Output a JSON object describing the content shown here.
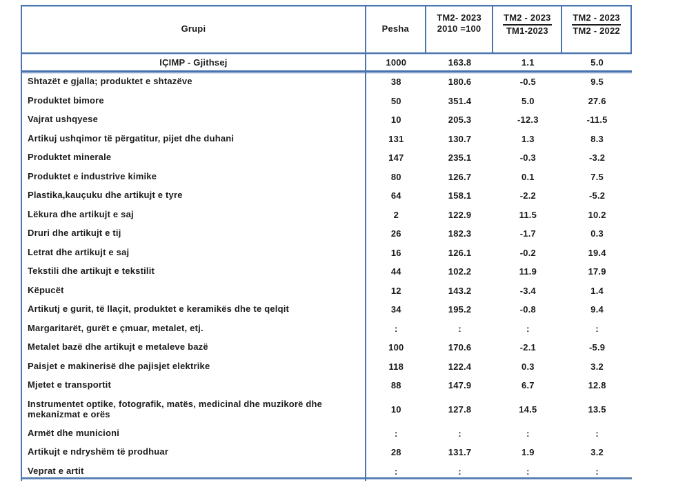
{
  "colors": {
    "border_blue": "#4a74ad",
    "border_light": "#b4c7e2",
    "text": "#1b1b1b",
    "background": "#ffffff"
  },
  "table": {
    "header": {
      "grupi": "Grupi",
      "pesha": "Pesha",
      "index_line1": "TM2- 2023",
      "index_line2": "2010 =100",
      "chg_q_line1": "TM2 - 2023",
      "chg_q_line2": "TM1-2023",
      "chg_y_line1": "TM2 - 2023",
      "chg_y_line2": "TM2 - 2022"
    },
    "total_row": {
      "label": "IÇIMP - Gjithsej",
      "pesha": "1000",
      "index": "163.8",
      "chg_q": "1.1",
      "chg_y": "5.0"
    },
    "rows": [
      {
        "label": "Shtazët e gjalla; produktet e shtazëve",
        "pesha": "38",
        "index": "180.6",
        "chg_q": "-0.5",
        "chg_y": "9.5",
        "tall": false
      },
      {
        "label": "Produktet bimore",
        "pesha": "50",
        "index": "351.4",
        "chg_q": "5.0",
        "chg_y": "27.6",
        "tall": false
      },
      {
        "label": "Vajrat ushqyese",
        "pesha": "10",
        "index": "205.3",
        "chg_q": "-12.3",
        "chg_y": "-11.5",
        "tall": false
      },
      {
        "label": "Artikuj ushqimor të përgatitur, pijet dhe duhani",
        "pesha": "131",
        "index": "130.7",
        "chg_q": "1.3",
        "chg_y": "8.3",
        "tall": false
      },
      {
        "label": "Produktet minerale",
        "pesha": "147",
        "index": "235.1",
        "chg_q": "-0.3",
        "chg_y": "-3.2",
        "tall": false
      },
      {
        "label": "Produktet e industrive kimike",
        "pesha": "80",
        "index": "126.7",
        "chg_q": "0.1",
        "chg_y": "7.5",
        "tall": false
      },
      {
        "label": "Plastika,kauçuku dhe artikujt e tyre",
        "pesha": "64",
        "index": "158.1",
        "chg_q": "-2.2",
        "chg_y": "-5.2",
        "tall": false
      },
      {
        "label": "Lëkura dhe artikujt e saj",
        "pesha": "2",
        "index": "122.9",
        "chg_q": "11.5",
        "chg_y": "10.2",
        "tall": false
      },
      {
        "label": "Druri dhe artikujt e tij",
        "pesha": "26",
        "index": "182.3",
        "chg_q": "-1.7",
        "chg_y": "0.3",
        "tall": false
      },
      {
        "label": "Letrat dhe artikujt e saj",
        "pesha": "16",
        "index": "126.1",
        "chg_q": "-0.2",
        "chg_y": "19.4",
        "tall": false
      },
      {
        "label": "Tekstili dhe artikujt e tekstilit",
        "pesha": "44",
        "index": "102.2",
        "chg_q": "11.9",
        "chg_y": "17.9",
        "tall": false
      },
      {
        "label": "Këpucët",
        "pesha": "12",
        "index": "143.2",
        "chg_q": "-3.4",
        "chg_y": "1.4",
        "tall": false
      },
      {
        "label": "Artikutj e gurit, të llaçit, produktet e keramikës dhe te qelqit",
        "pesha": "34",
        "index": "195.2",
        "chg_q": "-0.8",
        "chg_y": "9.4",
        "tall": false
      },
      {
        "label": "Margaritarët, gurët e çmuar, metalet, etj.",
        "pesha": ":",
        "index": ":",
        "chg_q": ":",
        "chg_y": ":",
        "tall": false
      },
      {
        "label": "Metalet bazë dhe artikujt e metaleve bazë",
        "pesha": "100",
        "index": "170.6",
        "chg_q": "-2.1",
        "chg_y": "-5.9",
        "tall": false
      },
      {
        "label": "Paisjet e makinerisë dhe pajisjet elektrike",
        "pesha": "118",
        "index": "122.4",
        "chg_q": "0.3",
        "chg_y": "3.2",
        "tall": false
      },
      {
        "label": "Mjetet e transportit",
        "pesha": "88",
        "index": "147.9",
        "chg_q": "6.7",
        "chg_y": "12.8",
        "tall": false
      },
      {
        "label": "Instrumentet optike, fotografik, matës, medicinal dhe muzikorë dhe mekanizmat e orës",
        "pesha": "10",
        "index": "127.8",
        "chg_q": "14.5",
        "chg_y": "13.5",
        "tall": true
      },
      {
        "label": "Armët dhe municioni",
        "pesha": ":",
        "index": ":",
        "chg_q": ":",
        "chg_y": ":",
        "tall": false
      },
      {
        "label": "Artikujt e ndryshëm të prodhuar",
        "pesha": "28",
        "index": "131.7",
        "chg_q": "1.9",
        "chg_y": "3.2",
        "tall": false
      },
      {
        "label": "Veprat e artit",
        "pesha": ":",
        "index": ":",
        "chg_q": ":",
        "chg_y": ":",
        "tall": false
      }
    ]
  }
}
